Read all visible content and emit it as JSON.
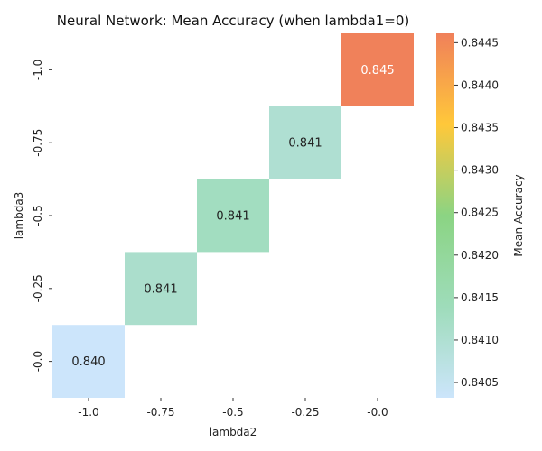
{
  "chart_data": {
    "type": "heatmap",
    "title": "Neural Network: Mean Accuracy (when lambda1=0)",
    "xlabel": "lambda2",
    "ylabel": "lambda3",
    "x_categories": [
      "-1.0",
      "-0.75",
      "-0.5",
      "-0.25",
      "-0.0"
    ],
    "y_categories": [
      "-1.0",
      "-0.75",
      "-0.5",
      "-0.25",
      "-0.0"
    ],
    "cells": [
      {
        "x": "-1.0",
        "y": "-0.0",
        "value": 0.8403,
        "label": "0.840"
      },
      {
        "x": "-0.75",
        "y": "-0.25",
        "value": 0.8411,
        "label": "0.841"
      },
      {
        "x": "-0.5",
        "y": "-0.5",
        "value": 0.8413,
        "label": "0.841"
      },
      {
        "x": "-0.25",
        "y": "-0.75",
        "value": 0.841,
        "label": "0.841"
      },
      {
        "x": "-0.0",
        "y": "-1.0",
        "value": 0.8446,
        "label": "0.845"
      }
    ],
    "colorbar": {
      "label": "Mean Accuracy",
      "range": [
        0.84032,
        0.84461
      ],
      "ticks": [
        "0.8405",
        "0.8410",
        "0.8415",
        "0.8420",
        "0.8425",
        "0.8430",
        "0.8435",
        "0.8440",
        "0.8445"
      ],
      "colors": [
        "#cce5fb",
        "#9edcba",
        "#8bd483",
        "#ffc83a",
        "#f0805a"
      ]
    }
  }
}
